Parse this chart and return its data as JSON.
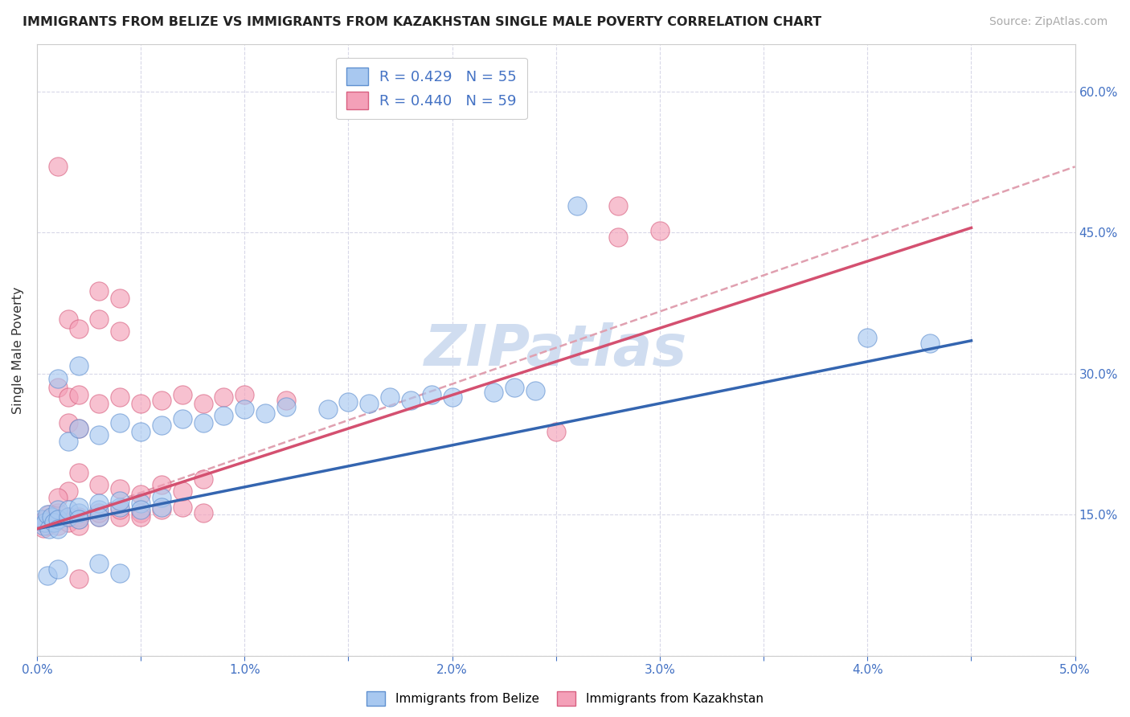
{
  "title": "IMMIGRANTS FROM BELIZE VS IMMIGRANTS FROM KAZAKHSTAN SINGLE MALE POVERTY CORRELATION CHART",
  "source": "Source: ZipAtlas.com",
  "ylabel": "Single Male Poverty",
  "xlim": [
    0.0,
    0.05
  ],
  "ylim": [
    0.0,
    0.65
  ],
  "xticks": [
    0.0,
    0.005,
    0.01,
    0.015,
    0.02,
    0.025,
    0.03,
    0.035,
    0.04,
    0.045,
    0.05
  ],
  "yticks": [
    0.0,
    0.15,
    0.3,
    0.45,
    0.6
  ],
  "xticklabels": [
    "0.0%",
    "",
    "1.0%",
    "",
    "2.0%",
    "",
    "3.0%",
    "",
    "4.0%",
    "",
    "5.0%"
  ],
  "yticklabels_right": [
    "",
    "15.0%",
    "30.0%",
    "45.0%",
    "60.0%"
  ],
  "legend_r_belize": "0.429",
  "legend_n_belize": "55",
  "legend_r_kazakhstan": "0.440",
  "legend_n_kazakhstan": "59",
  "color_belize_fill": "#a8c8f0",
  "color_belize_edge": "#6090d0",
  "color_kazakhstan_fill": "#f4a0b8",
  "color_kazakhstan_edge": "#d86080",
  "color_belize_line": "#3465b0",
  "color_kazakhstan_line": "#d45070",
  "color_dashed": "#e0a0b0",
  "color_grid": "#d8d8e8",
  "watermark_color": "#d0ddf0",
  "belize_points": [
    [
      0.0002,
      0.145
    ],
    [
      0.0003,
      0.138
    ],
    [
      0.0004,
      0.142
    ],
    [
      0.0005,
      0.15
    ],
    [
      0.0006,
      0.135
    ],
    [
      0.0007,
      0.148
    ],
    [
      0.0008,
      0.142
    ],
    [
      0.001,
      0.155
    ],
    [
      0.001,
      0.145
    ],
    [
      0.001,
      0.135
    ],
    [
      0.0015,
      0.148
    ],
    [
      0.0015,
      0.155
    ],
    [
      0.002,
      0.152
    ],
    [
      0.002,
      0.158
    ],
    [
      0.002,
      0.145
    ],
    [
      0.003,
      0.155
    ],
    [
      0.003,
      0.162
    ],
    [
      0.003,
      0.148
    ],
    [
      0.004,
      0.158
    ],
    [
      0.004,
      0.165
    ],
    [
      0.005,
      0.162
    ],
    [
      0.006,
      0.168
    ],
    [
      0.005,
      0.155
    ],
    [
      0.006,
      0.158
    ],
    [
      0.0015,
      0.228
    ],
    [
      0.002,
      0.242
    ],
    [
      0.003,
      0.235
    ],
    [
      0.004,
      0.248
    ],
    [
      0.005,
      0.238
    ],
    [
      0.006,
      0.245
    ],
    [
      0.007,
      0.252
    ],
    [
      0.008,
      0.248
    ],
    [
      0.009,
      0.255
    ],
    [
      0.01,
      0.262
    ],
    [
      0.011,
      0.258
    ],
    [
      0.012,
      0.265
    ],
    [
      0.014,
      0.262
    ],
    [
      0.015,
      0.27
    ],
    [
      0.016,
      0.268
    ],
    [
      0.017,
      0.275
    ],
    [
      0.018,
      0.272
    ],
    [
      0.019,
      0.278
    ],
    [
      0.02,
      0.275
    ],
    [
      0.022,
      0.28
    ],
    [
      0.023,
      0.285
    ],
    [
      0.024,
      0.282
    ],
    [
      0.001,
      0.295
    ],
    [
      0.002,
      0.308
    ],
    [
      0.0005,
      0.085
    ],
    [
      0.001,
      0.092
    ],
    [
      0.003,
      0.098
    ],
    [
      0.004,
      0.088
    ],
    [
      0.026,
      0.478
    ],
    [
      0.04,
      0.338
    ],
    [
      0.043,
      0.332
    ]
  ],
  "kazakhstan_points": [
    [
      0.0002,
      0.142
    ],
    [
      0.0003,
      0.136
    ],
    [
      0.0004,
      0.145
    ],
    [
      0.0005,
      0.138
    ],
    [
      0.0006,
      0.15
    ],
    [
      0.0007,
      0.142
    ],
    [
      0.0008,
      0.148
    ],
    [
      0.001,
      0.145
    ],
    [
      0.001,
      0.138
    ],
    [
      0.001,
      0.152
    ],
    [
      0.0015,
      0.142
    ],
    [
      0.0015,
      0.148
    ],
    [
      0.002,
      0.145
    ],
    [
      0.002,
      0.148
    ],
    [
      0.002,
      0.138
    ],
    [
      0.003,
      0.148
    ],
    [
      0.003,
      0.152
    ],
    [
      0.004,
      0.148
    ],
    [
      0.004,
      0.155
    ],
    [
      0.005,
      0.152
    ],
    [
      0.005,
      0.148
    ],
    [
      0.006,
      0.155
    ],
    [
      0.007,
      0.158
    ],
    [
      0.008,
      0.152
    ],
    [
      0.001,
      0.285
    ],
    [
      0.0015,
      0.275
    ],
    [
      0.002,
      0.278
    ],
    [
      0.003,
      0.268
    ],
    [
      0.004,
      0.275
    ],
    [
      0.005,
      0.268
    ],
    [
      0.006,
      0.272
    ],
    [
      0.007,
      0.278
    ],
    [
      0.008,
      0.268
    ],
    [
      0.009,
      0.275
    ],
    [
      0.01,
      0.278
    ],
    [
      0.012,
      0.272
    ],
    [
      0.003,
      0.388
    ],
    [
      0.004,
      0.38
    ],
    [
      0.0015,
      0.248
    ],
    [
      0.002,
      0.242
    ],
    [
      0.0015,
      0.358
    ],
    [
      0.002,
      0.348
    ],
    [
      0.003,
      0.358
    ],
    [
      0.004,
      0.345
    ],
    [
      0.001,
      0.52
    ],
    [
      0.025,
      0.238
    ],
    [
      0.028,
      0.445
    ],
    [
      0.03,
      0.452
    ],
    [
      0.028,
      0.478
    ],
    [
      0.002,
      0.082
    ],
    [
      0.002,
      0.195
    ],
    [
      0.0015,
      0.175
    ],
    [
      0.003,
      0.182
    ],
    [
      0.004,
      0.178
    ],
    [
      0.005,
      0.172
    ],
    [
      0.006,
      0.182
    ],
    [
      0.007,
      0.175
    ],
    [
      0.008,
      0.188
    ],
    [
      0.001,
      0.168
    ]
  ],
  "belize_trend_x": [
    0.0,
    0.045
  ],
  "belize_trend_y": [
    0.135,
    0.335
  ],
  "kazakhstan_trend_x": [
    0.0,
    0.045
  ],
  "kazakhstan_trend_y": [
    0.135,
    0.455
  ],
  "dashed_trend_x": [
    0.0,
    0.05
  ],
  "dashed_trend_y": [
    0.135,
    0.52
  ]
}
